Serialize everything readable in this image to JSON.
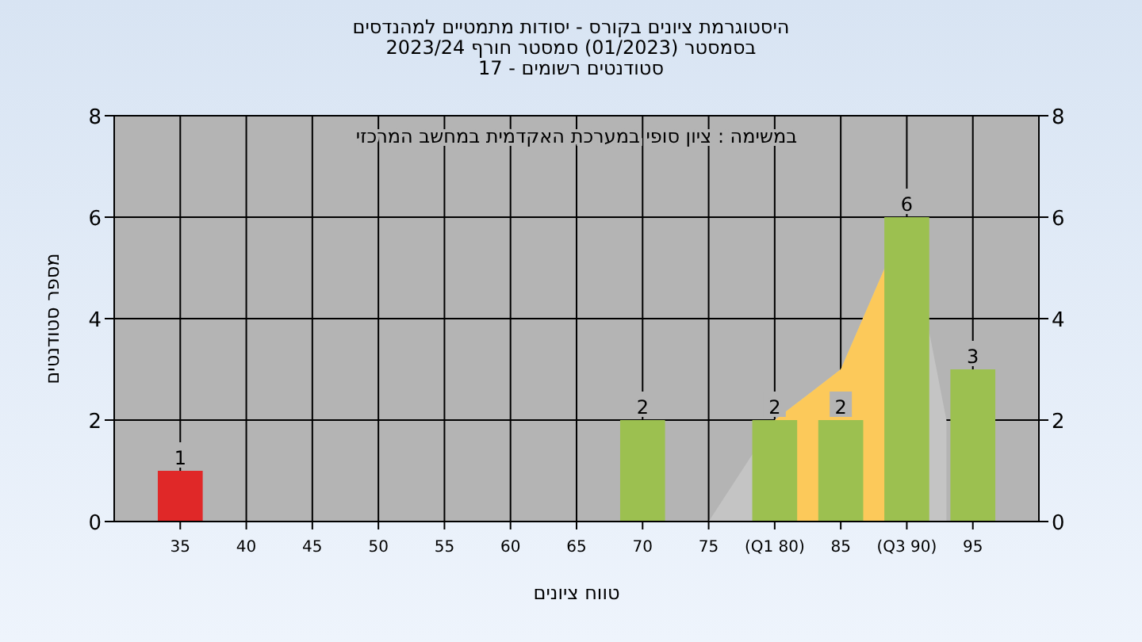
{
  "chart_data": {
    "type": "bar",
    "title": "היסטוגרמת ציונים בקורס - יסודות מתמטיים למהנדסים",
    "subtitle": "בסמסטר  (01/2023)  סמסטר חורף 2023/24\nסטודנטים רשומים - 17",
    "xlabel": "טווח ציונים",
    "ylabel": "מספר סטודנטים",
    "annotations": [
      "במשימה : ציון סופי במערכת האקדמית במחשב המרכזי"
    ],
    "series": [
      {
        "type": "area",
        "color": "#c4c4c4",
        "x": [
          75,
          80,
          85,
          90,
          93
        ],
        "values": [
          0,
          2,
          3,
          6,
          2
        ]
      },
      {
        "type": "area",
        "color": "#fcc95a",
        "x": [
          80,
          85,
          90
        ],
        "values": [
          2,
          3,
          6
        ]
      },
      {
        "x": [
          35,
          40,
          45,
          50,
          55,
          60,
          65,
          70,
          75,
          80,
          85,
          90,
          95
        ],
        "values": [
          1,
          0,
          0,
          0,
          0,
          0,
          0,
          2,
          0,
          2,
          2,
          6,
          3
        ],
        "colors": [
          "#e02828",
          "#9cc050",
          "#9cc050",
          "#9cc050",
          "#9cc050",
          "#9cc050",
          "#9cc050",
          "#9cc050",
          "#9cc050",
          "#9cc050",
          "#9cc050",
          "#9cc050",
          "#9cc050"
        ],
        "value_labels": [
          "1",
          null,
          null,
          null,
          null,
          null,
          null,
          "2",
          null,
          "2",
          "2",
          "6",
          "3"
        ]
      }
    ],
    "xlim": [
      30,
      100
    ],
    "xticks": [
      35,
      40,
      45,
      50,
      55,
      60,
      65,
      70,
      75,
      {
        "value": 80,
        "label": "(Q1 80)"
      },
      85,
      {
        "value": 90,
        "label": "(Q3 90)"
      },
      95
    ],
    "ylim": [
      0,
      8
    ],
    "yticks": [
      0,
      2,
      4,
      6,
      8
    ],
    "y2lim": [
      0,
      8
    ],
    "y2ticks": [
      0,
      2,
      4,
      6,
      8
    ],
    "grid": true
  }
}
